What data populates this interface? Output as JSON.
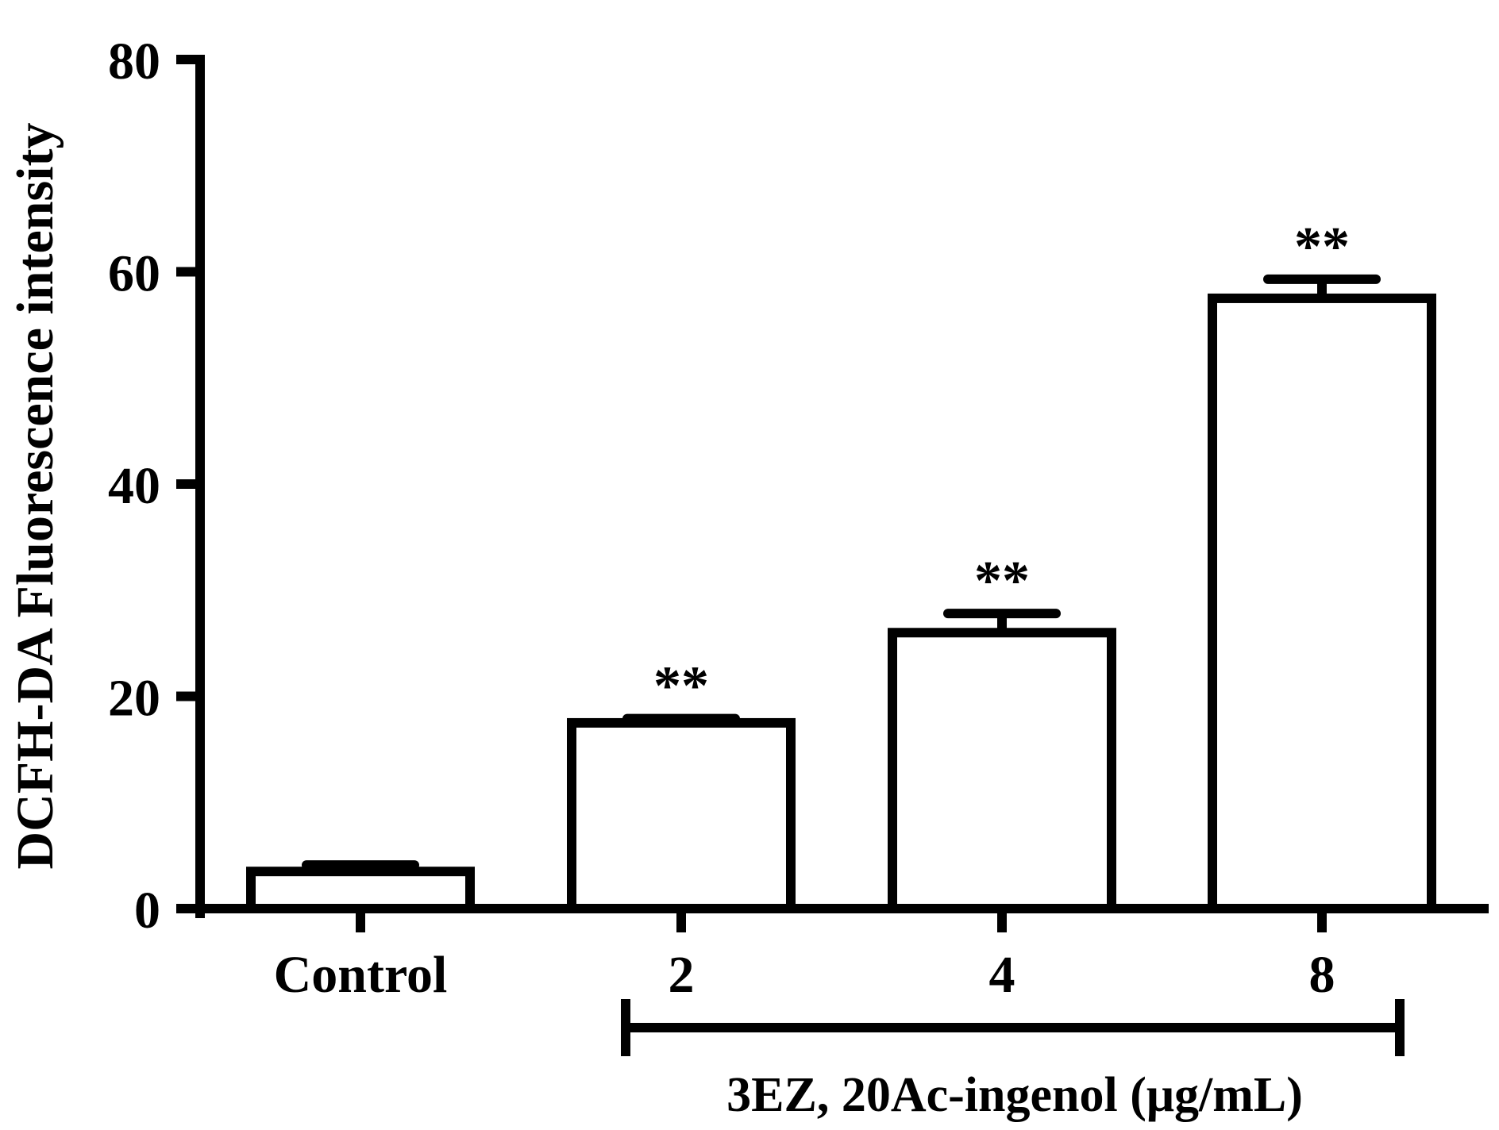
{
  "chart_data": {
    "type": "bar",
    "title": "",
    "ylabel": "DCFH-DA Fluorescence intensity",
    "xlabel": "3EZ, 20Ac-ingenol (μg/mL)",
    "categories": [
      "Control",
      "2",
      "4",
      "8"
    ],
    "values": [
      3.5,
      17.5,
      26.0,
      57.5
    ],
    "errors": [
      0.6,
      0.4,
      1.8,
      1.8
    ],
    "significance": [
      "",
      "**",
      "**",
      "**"
    ],
    "ylim": [
      0,
      80
    ],
    "yticks": [
      0,
      20,
      40,
      60,
      80
    ],
    "ytick_labels": [
      "0",
      "20",
      "40",
      "60",
      "80"
    ],
    "grid": false,
    "bracket": {
      "from_category": "2",
      "to_category": "8"
    },
    "colors": {
      "bar_fill": "#ffffff",
      "stroke": "#000000"
    }
  }
}
